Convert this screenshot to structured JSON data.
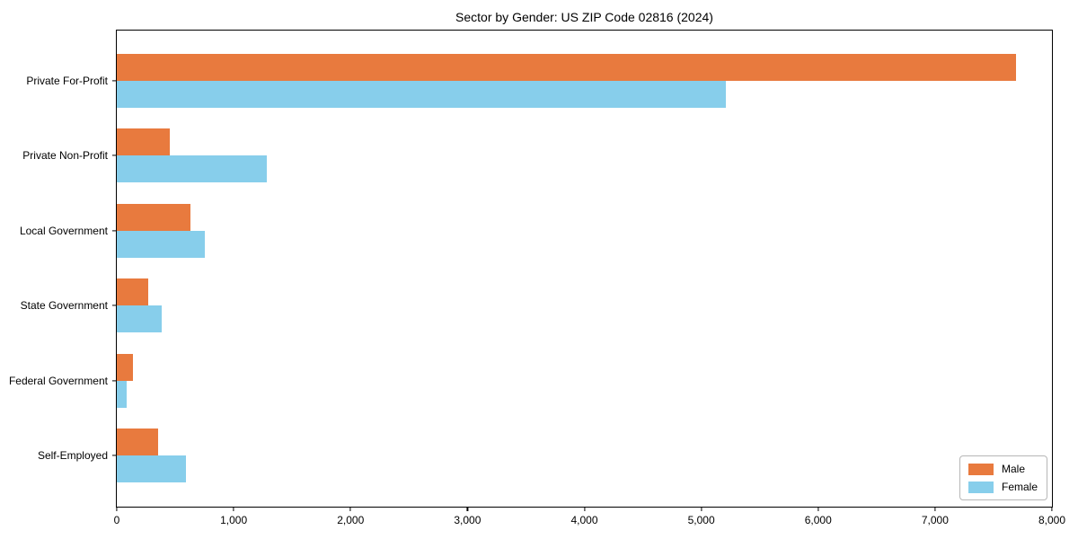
{
  "chart_data": {
    "type": "bar",
    "orientation": "horizontal",
    "title": "Sector by Gender: US ZIP Code 02816 (2024)",
    "categories": [
      "Private For-Profit",
      "Private Non-Profit",
      "Local Government",
      "State Government",
      "Federal Government",
      "Self-Employed"
    ],
    "series": [
      {
        "name": "Male",
        "color": "#e87a3e",
        "values": [
          7690,
          450,
          630,
          270,
          140,
          350
        ]
      },
      {
        "name": "Female",
        "color": "#87ceeb",
        "values": [
          5210,
          1280,
          750,
          385,
          85,
          590
        ]
      }
    ],
    "xlabel": "",
    "ylabel": "",
    "xlim": [
      0,
      8000
    ],
    "xticks": [
      0,
      1000,
      2000,
      3000,
      4000,
      5000,
      6000,
      7000,
      8000
    ],
    "xtick_labels": [
      "0",
      "1,000",
      "2,000",
      "3,000",
      "4,000",
      "5,000",
      "6,000",
      "7,000",
      "8,000"
    ],
    "grid": false,
    "legend_position": "lower right",
    "spine_color": "#000000"
  }
}
